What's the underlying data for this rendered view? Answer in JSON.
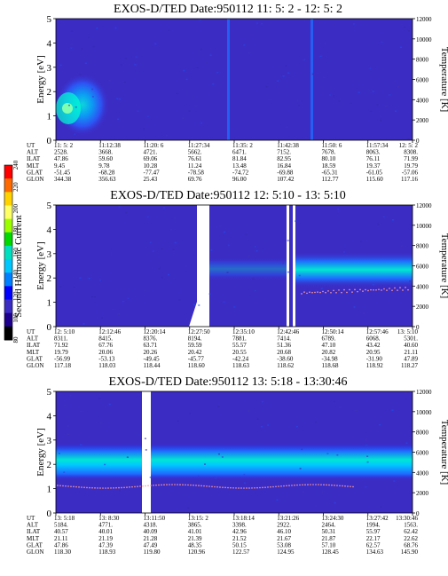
{
  "colorbar": {
    "label": "Second Harmonic Current",
    "ticks": [
      "240",
      "220",
      "200",
      "180",
      "160",
      "140",
      "120",
      "100",
      "80"
    ],
    "colors": [
      "#ff0000",
      "#ff6a00",
      "#ffd200",
      "#ffff66",
      "#9cff00",
      "#00d800",
      "#00e0c0",
      "#00c8ff",
      "#0080ff",
      "#0000ff",
      "#3b2cc4",
      "#1e008e",
      "#000000"
    ]
  },
  "chart_data": [
    {
      "type": "heatmap",
      "title": "EXOS-D/TED   Date:950112  11: 5: 2 - 12: 5: 2",
      "ylabel": "Energy [eV]",
      "y2label": "Temperature [K]",
      "ylim": [
        0,
        5
      ],
      "y2lim": [
        0,
        12000
      ],
      "yticks": [
        "0",
        "1",
        "2",
        "3",
        "4",
        "5"
      ],
      "y2ticks": [
        "0",
        "2000",
        "4000",
        "6000",
        "8000",
        "10000",
        "12000"
      ],
      "row_labels": [
        "UT",
        "ALT",
        "ILAT",
        "MLT",
        "GLAT",
        "GLON"
      ],
      "columns": [
        [
          "11: 5: 2",
          "2528.",
          "47.86",
          "9.45",
          "-51.45",
          "344.38"
        ],
        [
          "11:12:38",
          "3668.",
          "59.60",
          "9.78",
          "-68.28",
          "356.63"
        ],
        [
          "11:20: 6",
          "4721.",
          "69.06",
          "10.28",
          "-77.47",
          "25.43"
        ],
        [
          "11:27:34",
          "5662.",
          "76.61",
          "11.24",
          "-78.58",
          "69.76"
        ],
        [
          "11:35: 2",
          "6471.",
          "81.84",
          "13.48",
          "-74.72",
          "96.00"
        ],
        [
          "11:42:38",
          "7152.",
          "82.95",
          "16.84",
          "-69.88",
          "107.42"
        ],
        [
          "11:50: 6",
          "7678.",
          "80.10",
          "18.59",
          "-65.31",
          "112.77"
        ],
        [
          "11:57:34",
          "8063.",
          "76.11",
          "19.37",
          "-61.05",
          "115.60"
        ],
        [
          "12: 5: 2",
          "8308.",
          "71.99",
          "19.79",
          "-57.06",
          "117.16"
        ]
      ]
    },
    {
      "type": "heatmap",
      "title": "EXOS-D/TED   Date:950112  12: 5:10 - 13: 5:10",
      "ylabel": "Energy [eV]",
      "y2label": "Temperature [K]",
      "ylim": [
        0,
        5
      ],
      "y2lim": [
        0,
        12000
      ],
      "yticks": [
        "0",
        "1",
        "2",
        "3",
        "4",
        "5"
      ],
      "y2ticks": [
        "0",
        "2000",
        "4000",
        "6000",
        "8000",
        "10000",
        "12000"
      ],
      "row_labels": [
        "UT",
        "ALT",
        "ILAT",
        "MLT",
        "GLAT",
        "GLON"
      ],
      "columns": [
        [
          "12: 5:10",
          "8311.",
          "71.92",
          "19.79",
          "-56.99",
          "117.18"
        ],
        [
          "12:12:46",
          "8415.",
          "67.76",
          "20.06",
          "-53.13",
          "118.03"
        ],
        [
          "12:20:14",
          "8376.",
          "63.71",
          "20.26",
          "-49.45",
          "118.44"
        ],
        [
          "12:27:50",
          "8194.",
          "59.59",
          "20.42",
          "-45.77",
          "118.60"
        ],
        [
          "12:35:10",
          "7881.",
          "55.57",
          "20.55",
          "-42.24",
          "118.63"
        ],
        [
          "12:42:46",
          "7414.",
          "51.36",
          "20.68",
          "-38.60",
          "118.62"
        ],
        [
          "12:50:14",
          "6789.",
          "47.10",
          "20.82",
          "-34.98",
          "118.68"
        ],
        [
          "12:57:46",
          "6068.",
          "43.42",
          "20.95",
          "-31.90",
          "118.92"
        ],
        [
          "13: 5:10",
          "5301.",
          "40.60",
          "21.11",
          "47.89",
          "118.27"
        ]
      ]
    },
    {
      "type": "heatmap",
      "title": "EXOS-D/TED   Date:950112  13: 5:18 - 13:30:46",
      "ylabel": "Energy [eV]",
      "y2label": "Temperature [K]",
      "ylim": [
        0,
        5
      ],
      "y2lim": [
        0,
        12000
      ],
      "yticks": [
        "0",
        "1",
        "2",
        "3",
        "4",
        "5"
      ],
      "y2ticks": [
        "0",
        "2000",
        "4000",
        "6000",
        "8000",
        "10000",
        "12000"
      ],
      "row_labels": [
        "UT",
        "ALT",
        "ILAT",
        "MLT",
        "GLAT",
        "GLON"
      ],
      "columns": [
        [
          "13: 5:18",
          "5184.",
          "40.57",
          "21.11",
          "47.86",
          "118.30"
        ],
        [
          "13: 8:30",
          "4771.",
          "40.01",
          "21.19",
          "47.39",
          "118.93"
        ],
        [
          "13:11:50",
          "4318.",
          "40.09",
          "21.28",
          "47.49",
          "119.80"
        ],
        [
          "13:15: 2",
          "3865.",
          "41.01",
          "21.39",
          "48.35",
          "120.96"
        ],
        [
          "13:18:14",
          "3398.",
          "42.96",
          "21.52",
          "50.15",
          "122.57"
        ],
        [
          "13:21:26",
          "2922.",
          "46.10",
          "21.67",
          "53.08",
          "124.95"
        ],
        [
          "13:24:30",
          "2464.",
          "50.31",
          "21.87",
          "57.10",
          "128.45"
        ],
        [
          "13:27:42",
          "1994.",
          "55.97",
          "22.17",
          "62.57",
          "134.63"
        ],
        [
          "13:30:46",
          "1563.",
          "62.42",
          "22.62",
          "68.76",
          "145.90"
        ]
      ]
    }
  ]
}
